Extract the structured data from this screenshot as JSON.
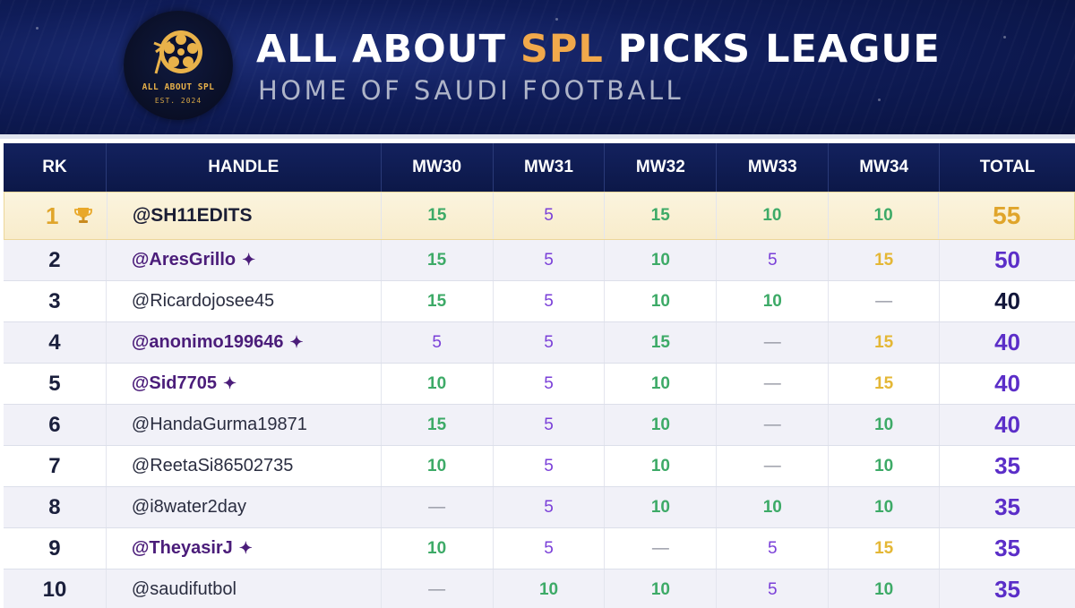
{
  "header": {
    "logo_text": "ALL ABOUT SPL",
    "logo_est": "EST. 2024",
    "title_prefix": "ALL ABOUT ",
    "title_accent": "SPL",
    "title_suffix": " PICKS LEAGUE",
    "subtitle": "HOME OF SAUDI FOOTBALL"
  },
  "colors": {
    "header_bg": "#0f1c58",
    "accent": "#f1a94b",
    "green": "#3daa67",
    "purple": "#7a3fd8",
    "gold": "#e4b735",
    "total_purple": "#5b2ec8"
  },
  "icons": {
    "trophy": "trophy-icon",
    "star": "sparkle-star-icon"
  },
  "columns": [
    "RK",
    "HANDLE",
    "MW30",
    "MW31",
    "MW32",
    "MW33",
    "MW34",
    "TOTAL"
  ],
  "rows": [
    {
      "rk": "1",
      "handle": "@SH11EDITS",
      "star": "",
      "mw": [
        "15",
        "5",
        "15",
        "10",
        "10"
      ],
      "total": "55"
    },
    {
      "rk": "2",
      "handle": "@AresGrillo",
      "star": "✦",
      "mw": [
        "15",
        "5",
        "10",
        "5",
        "15"
      ],
      "total": "50"
    },
    {
      "rk": "3",
      "handle": "@Ricardojosee45",
      "star": "",
      "mw": [
        "15",
        "5",
        "10",
        "10",
        "—"
      ],
      "total": "40"
    },
    {
      "rk": "4",
      "handle": "@anonimo199646",
      "star": "✦",
      "mw": [
        "5",
        "5",
        "15",
        "—",
        "15"
      ],
      "total": "40"
    },
    {
      "rk": "5",
      "handle": "@Sid7705",
      "star": "✦",
      "mw": [
        "10",
        "5",
        "10",
        "—",
        "15"
      ],
      "total": "40"
    },
    {
      "rk": "6",
      "handle": "@HandaGurma19871",
      "star": "",
      "mw": [
        "15",
        "5",
        "10",
        "—",
        "10"
      ],
      "total": "40"
    },
    {
      "rk": "7",
      "handle": "@ReetaSi86502735",
      "star": "",
      "mw": [
        "10",
        "5",
        "10",
        "—",
        "10"
      ],
      "total": "35"
    },
    {
      "rk": "8",
      "handle": "@i8water2day",
      "star": "",
      "mw": [
        "—",
        "5",
        "10",
        "10",
        "10"
      ],
      "total": "35"
    },
    {
      "rk": "9",
      "handle": "@TheyasirJ",
      "star": "✦",
      "mw": [
        "10",
        "5",
        "—",
        "5",
        "15"
      ],
      "total": "35"
    },
    {
      "rk": "10",
      "handle": "@saudifutbol",
      "star": "",
      "mw": [
        "—",
        "10",
        "10",
        "5",
        "10"
      ],
      "total": "35"
    }
  ]
}
